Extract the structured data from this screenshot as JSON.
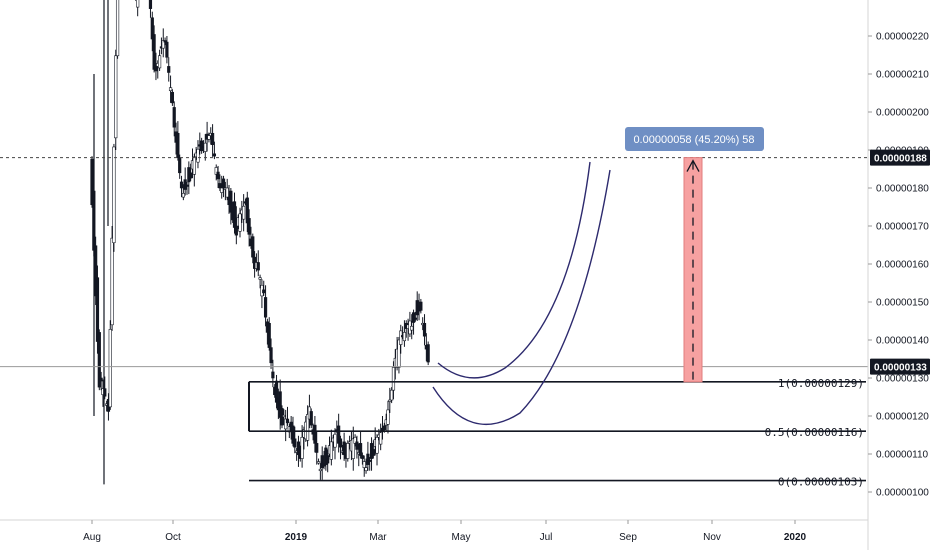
{
  "chart_data": {
    "type": "candlestick",
    "y_axis": {
      "ticks": [
        "0.00000100",
        "0.00000110",
        "0.00000120",
        "0.00000130",
        "0.00000140",
        "0.00000150",
        "0.00000160",
        "0.00000170",
        "0.00000180",
        "0.00000190",
        "0.00000200",
        "0.00000210",
        "0.00000220"
      ],
      "ylim": [
        9.6e-07,
        2.28e-06
      ],
      "position": "right"
    },
    "x_axis": {
      "labels": [
        "Aug",
        "Oct",
        "2019",
        "Mar",
        "May",
        "Jul",
        "Sep",
        "Nov",
        "2020"
      ],
      "bold_labels": [
        "2019",
        "2020"
      ]
    },
    "price_tags": [
      {
        "label": "0.00000188",
        "value": 1.88e-06,
        "line": "dashed"
      },
      {
        "label": "0.00000133",
        "value": 1.33e-06,
        "line": "solid"
      }
    ],
    "fib_levels": [
      {
        "label": "1(0.00000129)",
        "value": 1.29e-06
      },
      {
        "label": "0.5(0.00000116)",
        "value": 1.16e-06
      },
      {
        "label": "0(0.00000103)",
        "value": 1.03e-06
      }
    ],
    "measure": {
      "label": "0.00000058 (45.20%) 58",
      "from": 1.29e-06,
      "to": 1.88e-06,
      "color": "#f7a1a1"
    },
    "curves_color": "#2d2a6e",
    "candles": [
      {
        "x": 0.8,
        "o": 1.7e-06,
        "h": 2.3e-06,
        "l": 1.1e-06,
        "c": 1.9e-06
      },
      {
        "x": 1.0,
        "o": 1.9e-06,
        "h": 2e-06,
        "l": 1.2e-06,
        "c": 1.3e-06
      },
      {
        "x": 1.2,
        "o": 1.3e-06,
        "h": 1.5e-06,
        "l": 1e-06,
        "c": 1.2e-06
      },
      {
        "x": 1.4,
        "o": 1.2e-06,
        "h": 2.6e-06,
        "l": 1.1e-06,
        "c": 2.4e-06
      },
      {
        "x": 1.6,
        "o": 2.4e-06,
        "h": 2.9e-06,
        "l": 2.1e-06,
        "c": 2.7e-06
      },
      {
        "x": 1.8,
        "o": 2.7e-06,
        "h": 3.1e-06,
        "l": 2.2e-06,
        "c": 2.3e-06
      },
      {
        "x": 2.0,
        "o": 2.3e-06,
        "h": 2.7e-06,
        "l": 2e-06,
        "c": 2.5e-06
      },
      {
        "x": 2.2,
        "o": 2.5e-06,
        "h": 2.6e-06,
        "l": 2e-06,
        "c": 2.1e-06
      },
      {
        "x": 2.4,
        "o": 2.1e-06,
        "h": 2.3e-06,
        "l": 1.8e-06,
        "c": 2.2e-06
      },
      {
        "x": 2.6,
        "o": 2.2e-06,
        "h": 2.4e-06,
        "l": 1.9e-06,
        "c": 2e-06
      },
      {
        "x": 2.8,
        "o": 2e-06,
        "h": 2.1e-06,
        "l": 1.7e-06,
        "c": 1.8e-06
      },
      {
        "x": 3.0,
        "o": 1.8e-06,
        "h": 1.9e-06,
        "l": 1.65e-06,
        "c": 1.85e-06
      },
      {
        "x": 3.2,
        "o": 1.85e-06,
        "h": 2e-06,
        "l": 1.7e-06,
        "c": 1.9e-06
      },
      {
        "x": 3.4,
        "o": 1.9e-06,
        "h": 2.05e-06,
        "l": 1.8e-06,
        "c": 1.95e-06
      },
      {
        "x": 3.6,
        "o": 1.95e-06,
        "h": 2.1e-06,
        "l": 1.8e-06,
        "c": 1.8e-06
      },
      {
        "x": 3.8,
        "o": 1.8e-06,
        "h": 1.9e-06,
        "l": 1.7e-06,
        "c": 1.8e-06
      },
      {
        "x": 4.0,
        "o": 1.8e-06,
        "h": 1.9e-06,
        "l": 1.6e-06,
        "c": 1.7e-06
      },
      {
        "x": 4.2,
        "o": 1.7e-06,
        "h": 1.8e-06,
        "l": 1.6e-06,
        "c": 1.75e-06
      },
      {
        "x": 4.4,
        "o": 1.75e-06,
        "h": 1.8e-06,
        "l": 1.5e-06,
        "c": 1.6e-06
      },
      {
        "x": 4.6,
        "o": 1.6e-06,
        "h": 1.7e-06,
        "l": 1.4e-06,
        "c": 1.5e-06
      },
      {
        "x": 4.8,
        "o": 1.5e-06,
        "h": 1.6e-06,
        "l": 1.3e-06,
        "c": 1.3e-06
      },
      {
        "x": 5.0,
        "o": 1.3e-06,
        "h": 1.4e-06,
        "l": 1.1e-06,
        "c": 1.2e-06
      },
      {
        "x": 5.2,
        "o": 1.2e-06,
        "h": 1.3e-06,
        "l": 1.1e-06,
        "c": 1.15e-06
      },
      {
        "x": 5.4,
        "o": 1.15e-06,
        "h": 1.25e-06,
        "l": 1.05e-06,
        "c": 1.1e-06
      },
      {
        "x": 5.6,
        "o": 1.1e-06,
        "h": 1.2e-06,
        "l": 1.03e-06,
        "c": 1.2e-06
      },
      {
        "x": 5.8,
        "o": 1.2e-06,
        "h": 1.25e-06,
        "l": 1.05e-06,
        "c": 1.08e-06
      },
      {
        "x": 6.0,
        "o": 1.08e-06,
        "h": 1.2e-06,
        "l": 1.05e-06,
        "c": 1.1e-06
      },
      {
        "x": 6.2,
        "o": 1.1e-06,
        "h": 1.2e-06,
        "l": 1.04e-06,
        "c": 1.15e-06
      },
      {
        "x": 6.4,
        "o": 1.15e-06,
        "h": 1.22e-06,
        "l": 1.08e-06,
        "c": 1.1e-06
      },
      {
        "x": 6.6,
        "o": 1.1e-06,
        "h": 1.2e-06,
        "l": 1.06e-06,
        "c": 1.12e-06
      },
      {
        "x": 6.8,
        "o": 1.12e-06,
        "h": 1.18e-06,
        "l": 1.05e-06,
        "c": 1.08e-06
      },
      {
        "x": 7.0,
        "o": 1.08e-06,
        "h": 1.15e-06,
        "l": 1.06e-06,
        "c": 1.12e-06
      },
      {
        "x": 7.2,
        "o": 1.12e-06,
        "h": 1.2e-06,
        "l": 1.08e-06,
        "c": 1.15e-06
      },
      {
        "x": 7.4,
        "o": 1.15e-06,
        "h": 1.3e-06,
        "l": 1.1e-06,
        "c": 1.28e-06
      },
      {
        "x": 7.6,
        "o": 1.28e-06,
        "h": 1.5e-06,
        "l": 1.25e-06,
        "c": 1.4e-06
      },
      {
        "x": 7.8,
        "o": 1.4e-06,
        "h": 1.55e-06,
        "l": 1.3e-06,
        "c": 1.45e-06
      },
      {
        "x": 8.0,
        "o": 1.45e-06,
        "h": 1.6e-06,
        "l": 1.4e-06,
        "c": 1.5e-06
      },
      {
        "x": 8.2,
        "o": 1.5e-06,
        "h": 1.52e-06,
        "l": 1.28e-06,
        "c": 1.33e-06
      }
    ]
  }
}
